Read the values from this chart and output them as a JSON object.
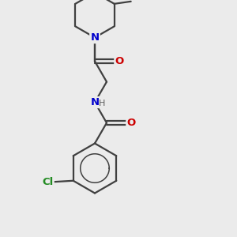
{
  "background_color": "#ebebeb",
  "bond_color": "#404040",
  "bond_width": 1.6,
  "atom_colors": {
    "N": "#0000cc",
    "O": "#cc0000",
    "Cl": "#228b22",
    "C": "#404040",
    "H": "#606060"
  },
  "font_size_atom": 9.5,
  "font_size_h": 8.0
}
